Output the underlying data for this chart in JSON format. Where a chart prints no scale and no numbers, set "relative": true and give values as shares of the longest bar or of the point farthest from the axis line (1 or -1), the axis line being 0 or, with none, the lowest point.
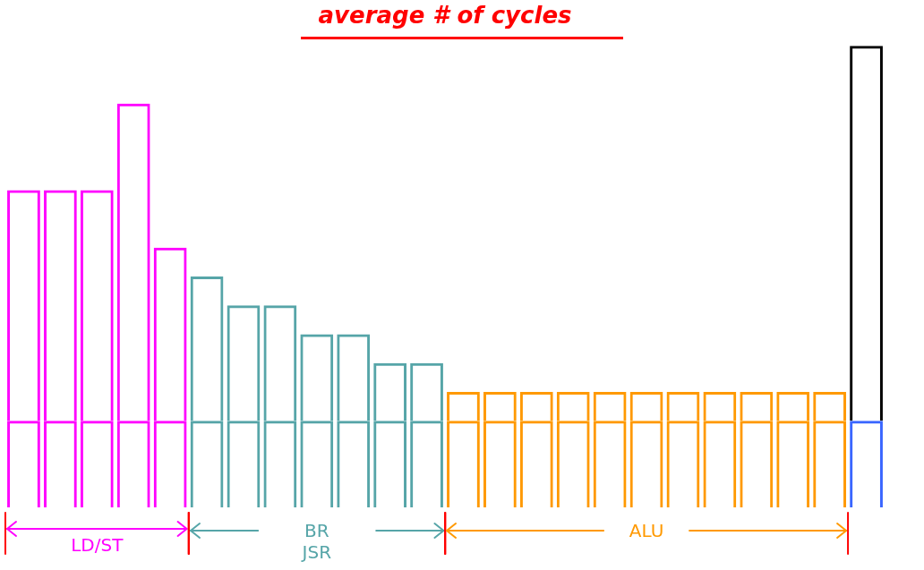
{
  "chart_data": {
    "type": "bar",
    "title": "average # of cycles",
    "relative": true,
    "stacked": true,
    "categories": [
      null,
      null,
      null,
      null,
      null,
      null,
      null,
      null,
      null,
      null,
      null,
      null,
      null,
      null,
      null,
      null,
      null,
      null,
      null,
      null,
      null,
      null,
      null,
      null
    ],
    "series": [
      {
        "colors": [
          "#ff00ff",
          "#ff00ff",
          "#ff00ff",
          "#ff00ff",
          "#ff00ff",
          "#56a5a8",
          "#56a5a8",
          "#56a5a8",
          "#56a5a8",
          "#56a5a8",
          "#56a5a8",
          "#56a5a8",
          "#ff9900",
          "#ff9900",
          "#ff9900",
          "#ff9900",
          "#ff9900",
          "#ff9900",
          "#ff9900",
          "#ff9900",
          "#ff9900",
          "#ff9900",
          "#ff9900",
          "#3a66ff"
        ],
        "values": [
          0.1875,
          0.1875,
          0.1875,
          0.1875,
          0.1875,
          0.1875,
          0.1875,
          0.1875,
          0.1875,
          0.1875,
          0.1875,
          0.1875,
          0.1875,
          0.1875,
          0.1875,
          0.1875,
          0.1875,
          0.1875,
          0.1875,
          0.1875,
          0.1875,
          0.1875,
          0.1875,
          0.1875
        ]
      },
      {
        "colors": [
          "#ff00ff",
          "#ff00ff",
          "#ff00ff",
          "#ff00ff",
          "#ff00ff",
          "#56a5a8",
          "#56a5a8",
          "#56a5a8",
          "#56a5a8",
          "#56a5a8",
          "#56a5a8",
          "#56a5a8",
          "#ff9900",
          "#ff9900",
          "#ff9900",
          "#ff9900",
          "#ff9900",
          "#ff9900",
          "#ff9900",
          "#ff9900",
          "#ff9900",
          "#ff9900",
          "#ff9900",
          "#000000"
        ],
        "values": [
          0.5,
          0.5,
          0.5,
          0.6875,
          0.375,
          0.3125,
          0.25,
          0.25,
          0.1875,
          0.1875,
          0.125,
          0.125,
          0.0625,
          0.0625,
          0.0625,
          0.0625,
          0.0625,
          0.0625,
          0.0625,
          0.0625,
          0.0625,
          0.0625,
          0.0625,
          0.8125
        ]
      }
    ],
    "annotations": [
      "LD/ST",
      "BR JSR",
      "ALU"
    ]
  }
}
